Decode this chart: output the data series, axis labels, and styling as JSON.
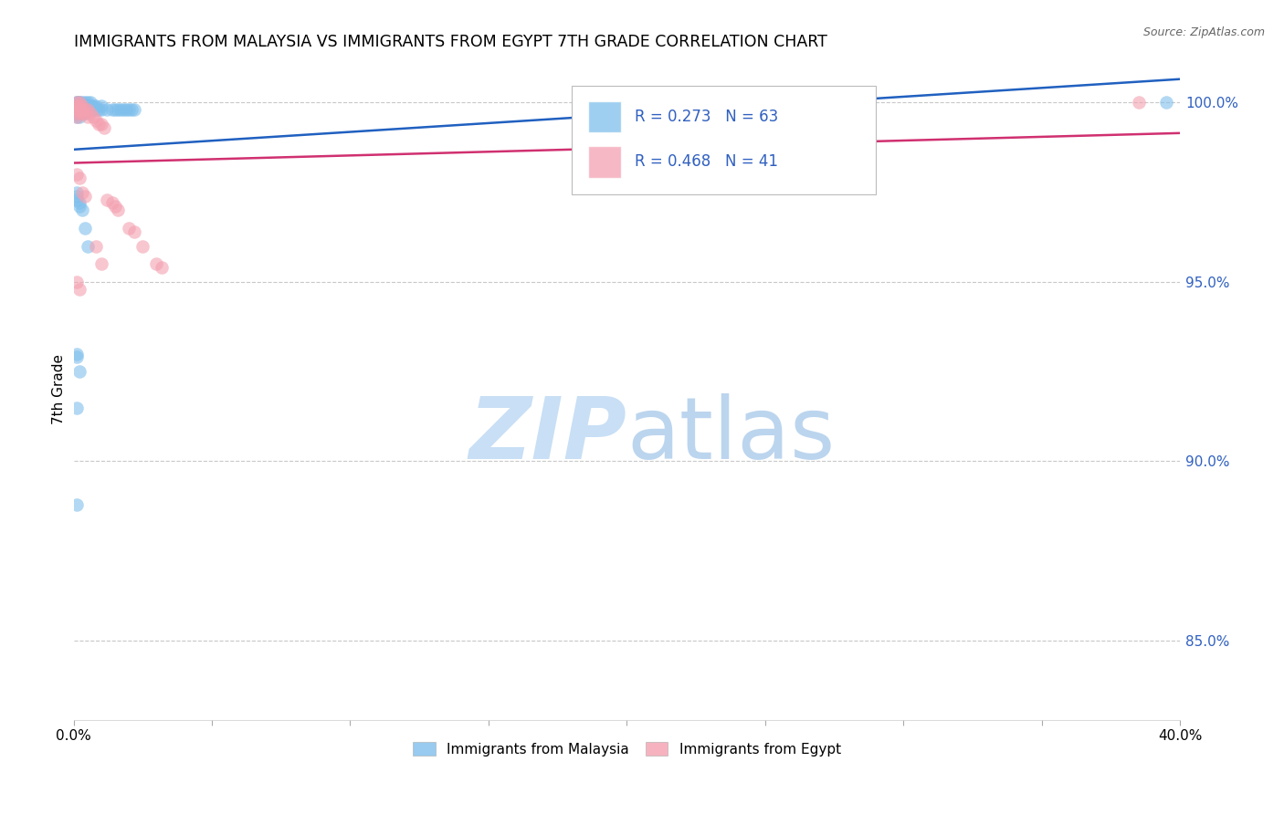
{
  "title": "IMMIGRANTS FROM MALAYSIA VS IMMIGRANTS FROM EGYPT 7TH GRADE CORRELATION CHART",
  "source": "Source: ZipAtlas.com",
  "ylabel": "7th Grade",
  "legend_malaysia": "Immigrants from Malaysia",
  "legend_egypt": "Immigrants from Egypt",
  "R_malaysia": 0.273,
  "N_malaysia": 63,
  "R_egypt": 0.468,
  "N_egypt": 41,
  "malaysia_color": "#7fbfec",
  "egypt_color": "#f4a0b0",
  "malaysia_line_color": "#2060c0",
  "egypt_line_color": "#d03070",
  "background_color": "#ffffff",
  "grid_color": "#c8c8c8",
  "x_min": 0.0,
  "x_max": 0.4,
  "y_min": 0.828,
  "y_max": 1.012,
  "ytick_vals": [
    1.0,
    0.95,
    0.9,
    0.85
  ],
  "malaysia_x": [
    0.001,
    0.001,
    0.001,
    0.001,
    0.001,
    0.001,
    0.001,
    0.001,
    0.001,
    0.002,
    0.002,
    0.002,
    0.002,
    0.002,
    0.002,
    0.003,
    0.003,
    0.003,
    0.003,
    0.004,
    0.004,
    0.004,
    0.005,
    0.005,
    0.005,
    0.006,
    0.006,
    0.007,
    0.007,
    0.008,
    0.008,
    0.009,
    0.01,
    0.01,
    0.012,
    0.014,
    0.015,
    0.016,
    0.017,
    0.018,
    0.019,
    0.02,
    0.021,
    0.022,
    0.001,
    0.001,
    0.001,
    0.002,
    0.002,
    0.003,
    0.004,
    0.005,
    0.001,
    0.001,
    0.002,
    0.001,
    0.001,
    0.395
  ],
  "malaysia_y": [
    1.0,
    1.0,
    0.999,
    0.999,
    0.998,
    0.998,
    0.997,
    0.997,
    0.996,
    1.0,
    1.0,
    0.999,
    0.998,
    0.997,
    0.996,
    1.0,
    0.999,
    0.998,
    0.997,
    1.0,
    0.999,
    0.997,
    1.0,
    0.999,
    0.998,
    1.0,
    0.999,
    0.999,
    0.998,
    0.999,
    0.998,
    0.998,
    0.999,
    0.998,
    0.998,
    0.998,
    0.998,
    0.998,
    0.998,
    0.998,
    0.998,
    0.998,
    0.998,
    0.998,
    0.975,
    0.974,
    0.973,
    0.972,
    0.971,
    0.97,
    0.965,
    0.96,
    0.93,
    0.929,
    0.925,
    0.915,
    0.888,
    1.0
  ],
  "egypt_x": [
    0.001,
    0.001,
    0.001,
    0.001,
    0.001,
    0.002,
    0.002,
    0.002,
    0.002,
    0.003,
    0.003,
    0.003,
    0.004,
    0.004,
    0.005,
    0.005,
    0.006,
    0.007,
    0.008,
    0.009,
    0.01,
    0.011,
    0.012,
    0.014,
    0.015,
    0.016,
    0.02,
    0.022,
    0.025,
    0.03,
    0.032,
    0.001,
    0.002,
    0.003,
    0.004,
    0.001,
    0.002,
    0.008,
    0.01,
    0.385
  ],
  "egypt_y": [
    1.0,
    0.999,
    0.998,
    0.997,
    0.996,
    1.0,
    0.999,
    0.998,
    0.997,
    0.999,
    0.998,
    0.997,
    0.998,
    0.997,
    0.998,
    0.996,
    0.997,
    0.996,
    0.995,
    0.994,
    0.994,
    0.993,
    0.973,
    0.972,
    0.971,
    0.97,
    0.965,
    0.964,
    0.96,
    0.955,
    0.954,
    0.98,
    0.979,
    0.975,
    0.974,
    0.95,
    0.948,
    0.96,
    0.955,
    1.0
  ]
}
